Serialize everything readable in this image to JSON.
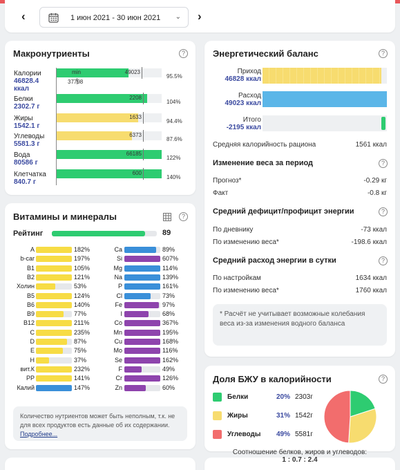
{
  "header": {
    "date_range": "1 июн 2021 - 30 июн 2021",
    "prev_glyph": "‹",
    "next_glyph": "›",
    "dropdown_glyph": "⌄",
    "calendar_icon": "calendar-icon"
  },
  "macros": {
    "title": "Макронутриенты",
    "help": "?",
    "rows": [
      {
        "name": "Калории",
        "amount": "46828.4",
        "unit": "ккал",
        "fill": 0.684,
        "norm": 0.806,
        "norm_label": "49023",
        "extra_label": "37798",
        "extra_pos": 0.21,
        "min_label": "min",
        "pct": "95.5%",
        "color": "#2ecc71"
      },
      {
        "name": "Белки",
        "amount": "2302.7",
        "unit": "г",
        "fill": 0.864,
        "norm": 0.82,
        "norm_label": "2208",
        "pct": "104%",
        "color": "#2ecc71"
      },
      {
        "name": "Жиры",
        "amount": "1542.1",
        "unit": "г",
        "fill": 0.774,
        "norm": 0.82,
        "norm_label": "1633",
        "pct": "94.4%",
        "color": "#f7dc6f"
      },
      {
        "name": "Углеводы",
        "amount": "5581.3",
        "unit": "г",
        "fill": 0.717,
        "norm": 0.82,
        "norm_label": "6373",
        "pct": "87.6%",
        "color": "#f7dc6f"
      },
      {
        "name": "Вода",
        "amount": "80586",
        "unit": "г",
        "fill": 1.0,
        "norm": 0.82,
        "norm_label": "66185",
        "pct": "122%",
        "color": "#2ecc71"
      },
      {
        "name": "Клетчатка",
        "amount": "840.7",
        "unit": "г",
        "fill": 1.0,
        "norm": 0.82,
        "norm_label": "600",
        "pct": "140%",
        "color": "#2ecc71"
      }
    ]
  },
  "vitamins": {
    "title": "Витамины и минералы",
    "rating_label": "Рейтинг",
    "rating_value": "89",
    "rating_fill": 0.89,
    "left": [
      {
        "name": "A",
        "pct": "182%",
        "fill": 1.0,
        "color": "#f7dc45"
      },
      {
        "name": "b-car",
        "pct": "197%",
        "fill": 1.0,
        "color": "#f7dc45"
      },
      {
        "name": "B1",
        "pct": "105%",
        "fill": 1.0,
        "color": "#f7dc45"
      },
      {
        "name": "B2",
        "pct": "121%",
        "fill": 1.0,
        "color": "#f7dc45"
      },
      {
        "name": "Холин",
        "pct": "53%",
        "fill": 0.53,
        "color": "#f7dc45"
      },
      {
        "name": "B5",
        "pct": "124%",
        "fill": 1.0,
        "color": "#f7dc45"
      },
      {
        "name": "B6",
        "pct": "140%",
        "fill": 1.0,
        "color": "#f7dc45"
      },
      {
        "name": "B9",
        "pct": "77%",
        "fill": 0.77,
        "color": "#f7dc45"
      },
      {
        "name": "B12",
        "pct": "211%",
        "fill": 1.0,
        "color": "#f7dc45"
      },
      {
        "name": "C",
        "pct": "235%",
        "fill": 1.0,
        "color": "#f7dc45"
      },
      {
        "name": "D",
        "pct": "87%",
        "fill": 0.87,
        "color": "#f7dc45"
      },
      {
        "name": "E",
        "pct": "75%",
        "fill": 0.75,
        "color": "#f7dc45"
      },
      {
        "name": "H",
        "pct": "37%",
        "fill": 0.37,
        "color": "#f7dc45"
      },
      {
        "name": "вит.К",
        "pct": "232%",
        "fill": 1.0,
        "color": "#f7dc45"
      },
      {
        "name": "PP",
        "pct": "141%",
        "fill": 1.0,
        "color": "#f7dc45"
      },
      {
        "name": "Калий",
        "pct": "147%",
        "fill": 1.0,
        "color": "#3a8fd9"
      }
    ],
    "right": [
      {
        "name": "Ca",
        "pct": "89%",
        "fill": 0.89,
        "color": "#3a8fd9"
      },
      {
        "name": "Si",
        "pct": "607%",
        "fill": 1.0,
        "color": "#8e44ad"
      },
      {
        "name": "Mg",
        "pct": "114%",
        "fill": 1.0,
        "color": "#3a8fd9"
      },
      {
        "name": "Na",
        "pct": "139%",
        "fill": 1.0,
        "color": "#3a8fd9"
      },
      {
        "name": "P",
        "pct": "161%",
        "fill": 1.0,
        "color": "#3a8fd9"
      },
      {
        "name": "Cl",
        "pct": "73%",
        "fill": 0.73,
        "color": "#3a8fd9"
      },
      {
        "name": "Fe",
        "pct": "97%",
        "fill": 0.97,
        "color": "#8e44ad"
      },
      {
        "name": "I",
        "pct": "68%",
        "fill": 0.68,
        "color": "#8e44ad"
      },
      {
        "name": "Co",
        "pct": "367%",
        "fill": 1.0,
        "color": "#8e44ad"
      },
      {
        "name": "Mn",
        "pct": "195%",
        "fill": 1.0,
        "color": "#8e44ad"
      },
      {
        "name": "Cu",
        "pct": "168%",
        "fill": 1.0,
        "color": "#8e44ad"
      },
      {
        "name": "Mo",
        "pct": "116%",
        "fill": 1.0,
        "color": "#8e44ad"
      },
      {
        "name": "Se",
        "pct": "162%",
        "fill": 1.0,
        "color": "#8e44ad"
      },
      {
        "name": "F",
        "pct": "49%",
        "fill": 0.49,
        "color": "#8e44ad"
      },
      {
        "name": "Cr",
        "pct": "126%",
        "fill": 1.0,
        "color": "#8e44ad"
      },
      {
        "name": "Zn",
        "pct": "60%",
        "fill": 0.6,
        "color": "#8e44ad"
      }
    ],
    "note_text": "Количество нутриентов может быть неполным, т.к. не для всех продуктов есть данные об их содержании.",
    "note_link": "Подробнее..."
  },
  "energy": {
    "title": "Энергетический баланс",
    "income_label": "Приход",
    "income_value": "46828 ккал",
    "outcome_label": "Расход",
    "outcome_value": "49023 ккал",
    "total_label": "Итого",
    "total_value": "-2195 ккал",
    "income_fill": 0.955,
    "outcome_fill": 1.0,
    "avg_calorie_label": "Средняя калорийность рациона",
    "avg_calorie_value": "1561 ккал",
    "weight_title": "Изменение веса за период",
    "forecast_label": "Прогноз*",
    "forecast_value": "-0.29 кг",
    "fact_label": "Факт",
    "fact_value": "-0.8 кг",
    "deficit_title": "Средний дефицит/профицит энергии",
    "by_diary_label": "По дневнику",
    "by_diary_value": "-73 ккал",
    "by_weight_label": "По изменению веса*",
    "by_weight_value": "-198.6 ккал",
    "expense_title": "Средний расход энергии в сутки",
    "by_settings_label": "По настройкам",
    "by_settings_value": "1634 ккал",
    "by_weight2_label": "По изменению веса*",
    "by_weight2_value": "1760 ккал",
    "note": "* Расчёт не учитывает возможные колебания веса из-за изменения водного баланса"
  },
  "bju": {
    "title": "Доля БЖУ в калорийности",
    "items": [
      {
        "name": "Белки",
        "pct": "20%",
        "grams": "2303г",
        "color": "#2ecc71",
        "share": 0.2
      },
      {
        "name": "Жиры",
        "pct": "31%",
        "grams": "1542г",
        "color": "#f7dc6f",
        "share": 0.31
      },
      {
        "name": "Углеводы",
        "pct": "49%",
        "grams": "5581г",
        "color": "#f26d6d",
        "share": 0.49
      }
    ],
    "ratio_label": "Соотношение белков, жиров и углеводов:",
    "ratio_value": "1 : 0.7 : 2.4"
  }
}
